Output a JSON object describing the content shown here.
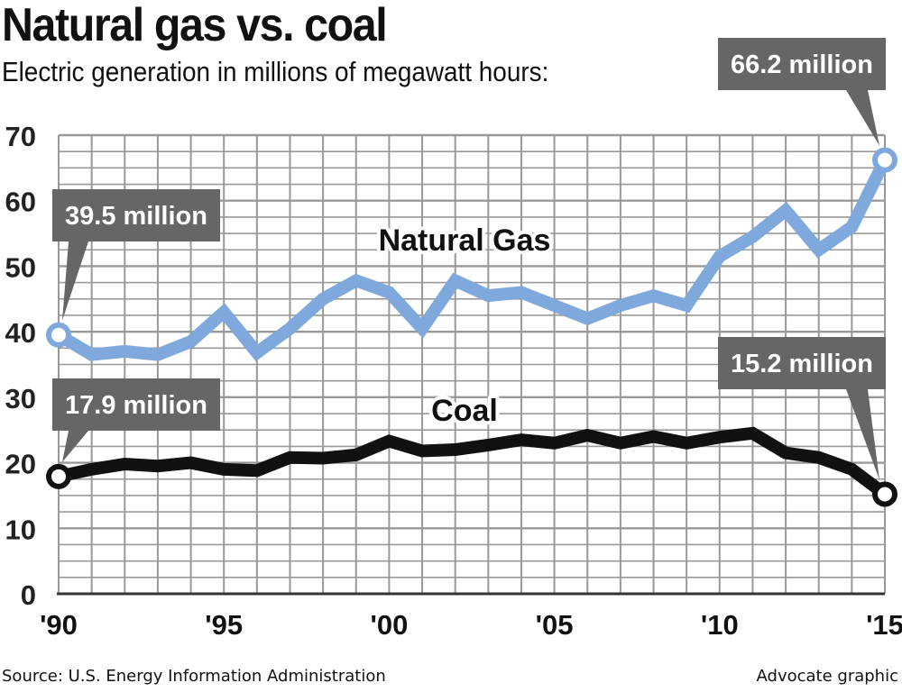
{
  "header": {
    "title": "Natural gas vs. coal",
    "subtitle": "Electric generation in millions of megawatt hours:"
  },
  "footer": {
    "source": "Source: U.S. Energy Information Administration",
    "credit": "Advocate graphic"
  },
  "colors": {
    "gas": "#7fa8dc",
    "coal": "#111111",
    "callout": "#666666",
    "grid": "#999999"
  },
  "chart_data": {
    "type": "line",
    "title": "Natural gas vs. coal",
    "subtitle": "Electric generation in millions of megawatt hours:",
    "xlabel": "",
    "ylabel": "",
    "x": [
      1990,
      1991,
      1992,
      1993,
      1994,
      1995,
      1996,
      1997,
      1998,
      1999,
      2000,
      2001,
      2002,
      2003,
      2004,
      2005,
      2006,
      2007,
      2008,
      2009,
      2010,
      2011,
      2012,
      2013,
      2014,
      2015
    ],
    "xlim": [
      1990,
      2015
    ],
    "ylim": [
      0,
      70
    ],
    "yticks": [
      0,
      10,
      20,
      30,
      40,
      50,
      60,
      70
    ],
    "xticks": [
      {
        "value": 1990,
        "label": "'90"
      },
      {
        "value": 1995,
        "label": "'95"
      },
      {
        "value": 2000,
        "label": "'00"
      },
      {
        "value": 2005,
        "label": "'05"
      },
      {
        "value": 2010,
        "label": "'10"
      },
      {
        "value": 2015,
        "label": "'15"
      }
    ],
    "grid": true,
    "series": [
      {
        "name": "Natural Gas",
        "values": [
          39.5,
          36.5,
          37.0,
          36.5,
          38.5,
          43.0,
          36.8,
          40.5,
          45.0,
          47.8,
          46.0,
          40.5,
          47.8,
          45.5,
          46.0,
          44.0,
          42.0,
          44.0,
          45.5,
          44.0,
          51.5,
          54.5,
          58.5,
          52.5,
          56.0,
          66.2
        ]
      },
      {
        "name": "Coal",
        "values": [
          17.9,
          19.0,
          19.8,
          19.5,
          20.0,
          19.0,
          18.8,
          20.8,
          20.7,
          21.2,
          23.3,
          21.8,
          22.0,
          22.7,
          23.5,
          23.0,
          24.2,
          23.0,
          24.0,
          23.0,
          23.9,
          24.5,
          21.5,
          20.8,
          19.0,
          15.2
        ]
      }
    ],
    "annotations": [
      {
        "series": 0,
        "index": 0,
        "text": "39.5 million"
      },
      {
        "series": 0,
        "index": 25,
        "text": "66.2 million"
      },
      {
        "series": 1,
        "index": 0,
        "text": "17.9 million"
      },
      {
        "series": 1,
        "index": 25,
        "text": "15.2 million"
      }
    ]
  }
}
